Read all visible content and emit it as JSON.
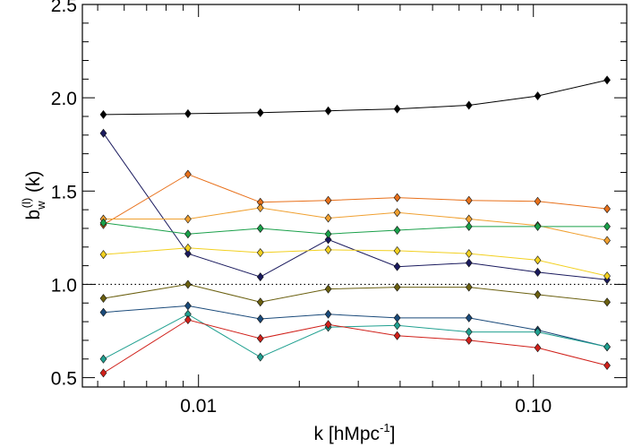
{
  "chart_data": {
    "type": "line",
    "xlabel_main": "k [hMpc",
    "xlabel_sup": "-1",
    "xlabel_close": "]",
    "ylabel_b": "b",
    "ylabel_sub": "w",
    "ylabel_sup": "(l)",
    "ylabel_rest": " (k)",
    "xscale": "log",
    "xlim": [
      0.0045,
      0.19
    ],
    "ylim": [
      0.45,
      2.5
    ],
    "x_ticks": [
      {
        "value": 0.01,
        "label": "0.01"
      },
      {
        "value": 0.1,
        "label": "0.10"
      }
    ],
    "y_ticks": [
      {
        "value": 0.5,
        "label": "0.5"
      },
      {
        "value": 1.0,
        "label": "1.0"
      },
      {
        "value": 1.5,
        "label": "1.5"
      },
      {
        "value": 2.0,
        "label": "2.0"
      },
      {
        "value": 2.5,
        "label": "2.5"
      }
    ],
    "reference_line": {
      "y": 1.0,
      "style": "dotted"
    },
    "x": [
      0.0052,
      0.0093,
      0.0153,
      0.0244,
      0.0392,
      0.0642,
      0.103,
      0.166
    ],
    "series": [
      {
        "color": "#000000",
        "values": [
          1.91,
          1.915,
          1.92,
          1.93,
          1.94,
          1.96,
          2.01,
          2.095
        ]
      },
      {
        "color": "#1a1a5e",
        "values": [
          1.81,
          1.165,
          1.04,
          1.24,
          1.095,
          1.115,
          1.065,
          1.025
        ]
      },
      {
        "color": "#e8701a",
        "values": [
          1.32,
          1.59,
          1.44,
          1.45,
          1.465,
          1.45,
          1.445,
          1.405
        ]
      },
      {
        "color": "#f0a030",
        "values": [
          1.35,
          1.35,
          1.41,
          1.355,
          1.385,
          1.35,
          1.315,
          1.235
        ]
      },
      {
        "color": "#1aa04a",
        "values": [
          1.33,
          1.27,
          1.3,
          1.27,
          1.29,
          1.31,
          1.31,
          1.31
        ]
      },
      {
        "color": "#f2d020",
        "values": [
          1.16,
          1.195,
          1.17,
          1.185,
          1.18,
          1.165,
          1.13,
          1.045
        ]
      },
      {
        "color": "#6b6010",
        "values": [
          0.925,
          1.0,
          0.905,
          0.975,
          0.985,
          0.985,
          0.945,
          0.905
        ]
      },
      {
        "color": "#1a4a7a",
        "values": [
          0.85,
          0.885,
          0.815,
          0.84,
          0.82,
          0.82,
          0.755,
          0.665
        ]
      },
      {
        "color": "#20a090",
        "values": [
          0.6,
          0.84,
          0.61,
          0.77,
          0.78,
          0.745,
          0.745,
          0.665
        ]
      },
      {
        "color": "#d0201a",
        "values": [
          0.525,
          0.81,
          0.71,
          0.785,
          0.725,
          0.7,
          0.66,
          0.565
        ]
      }
    ]
  }
}
